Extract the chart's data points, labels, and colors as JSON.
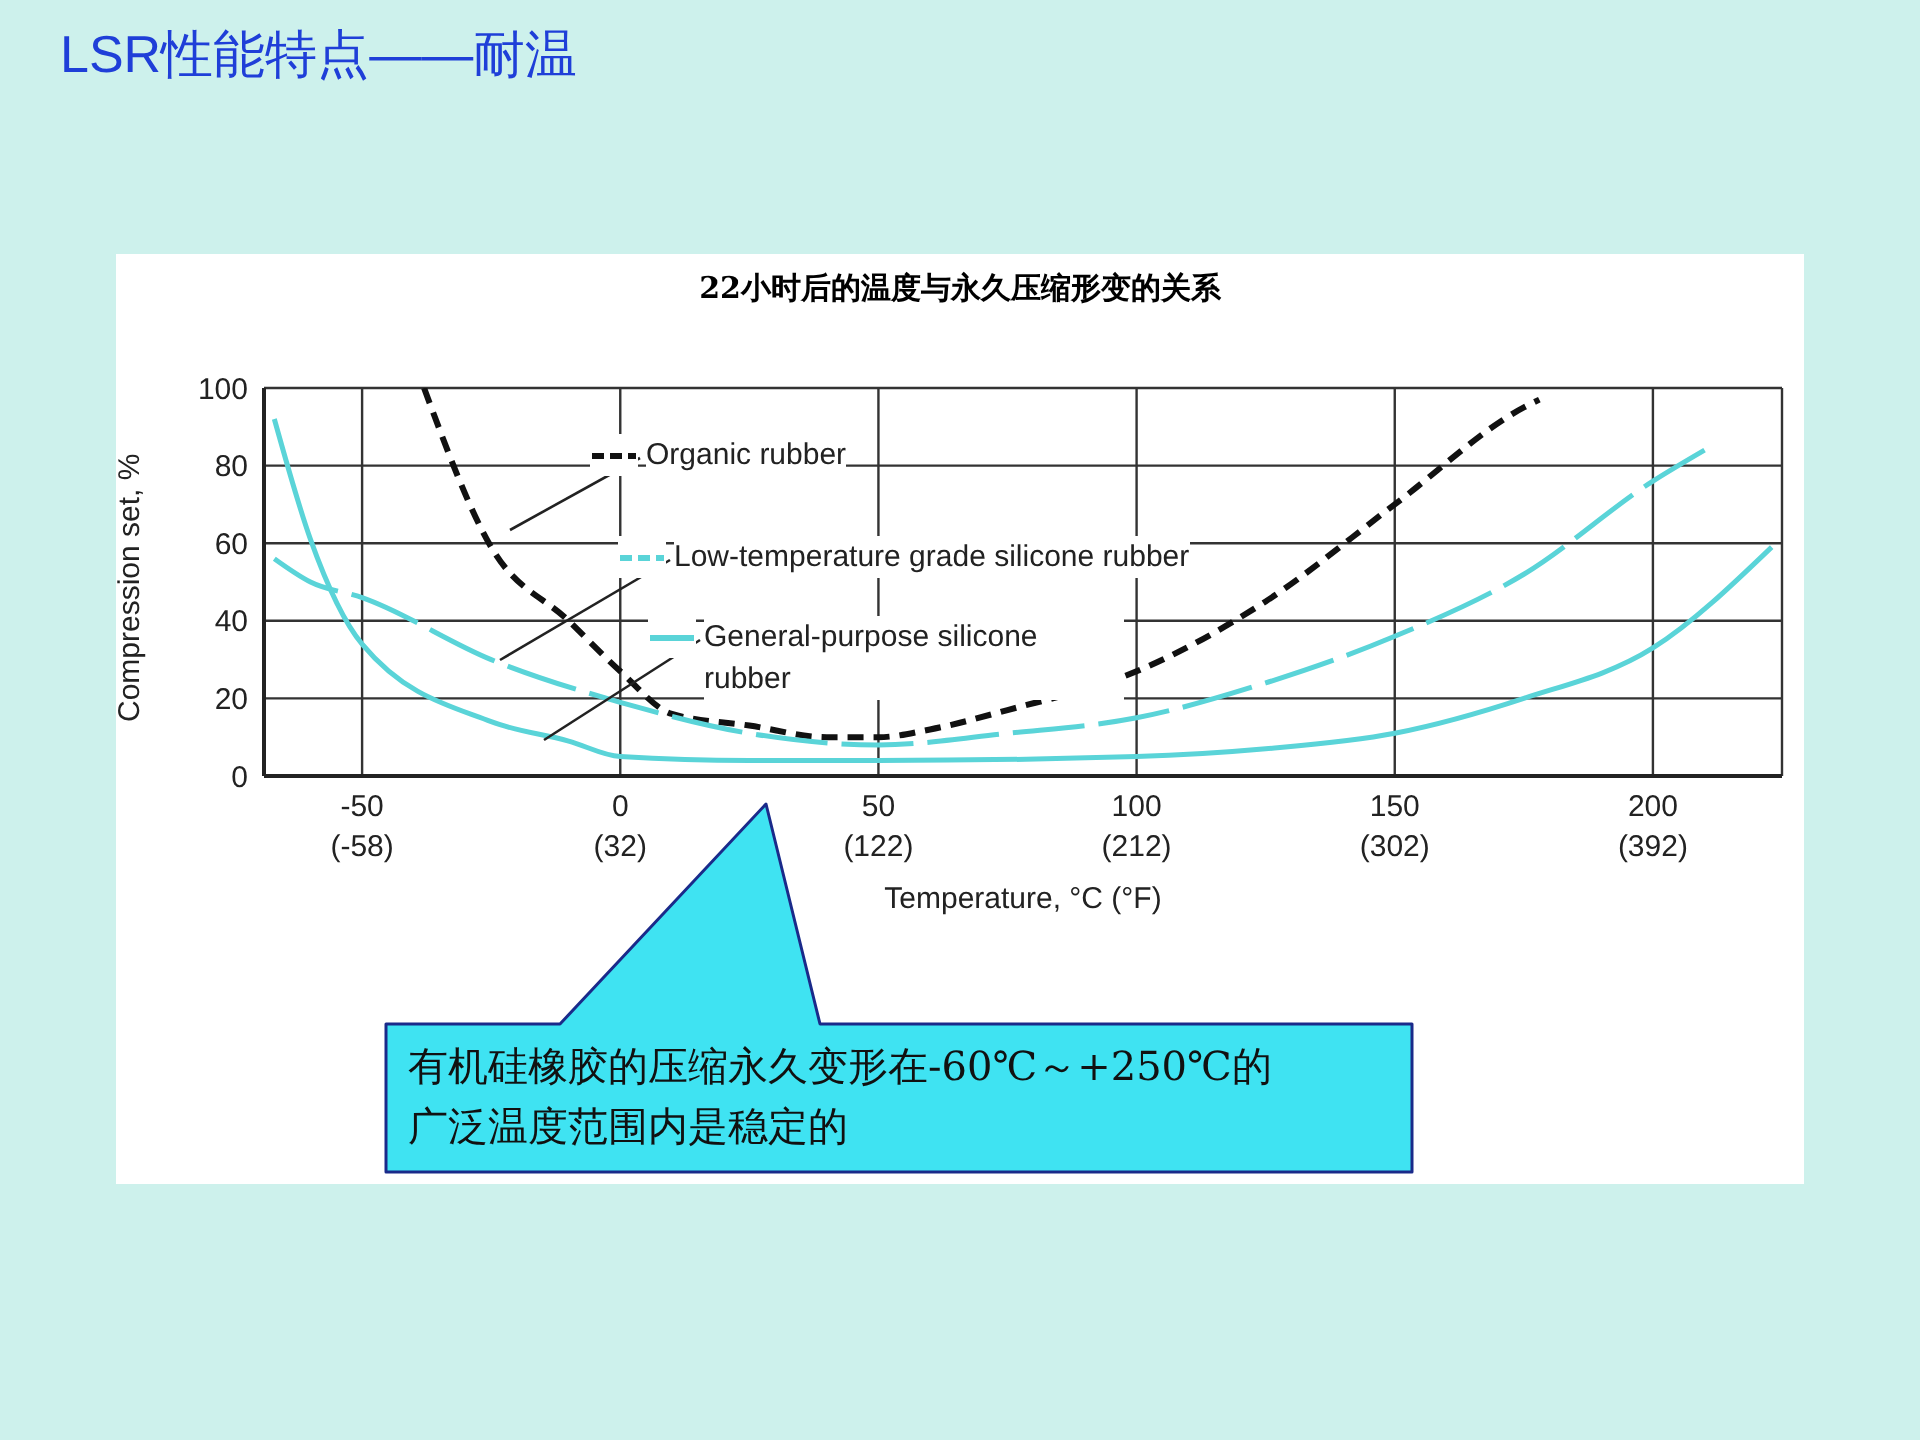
{
  "chart_data": {
    "type": "line",
    "title": "LSR性能特点——耐温",
    "subtitle": "22小时后的温度与永久压缩形变的关系",
    "xlabel": "Temperature, °C (°F)",
    "ylabel": "Compression set, %",
    "annotations": [
      "有机硅橡胶的压缩永久变形在-60℃～+250℃的广泛温度范围内是稳定的"
    ],
    "xlim": [
      -69,
      225
    ],
    "xticks": [
      -50,
      0,
      50,
      100,
      150,
      200
    ],
    "x2lim": [
      -92.2,
      437
    ],
    "x2ticks": [
      {
        "value": -58,
        "label": "(-58)"
      },
      {
        "value": 32,
        "label": "(32)"
      },
      {
        "value": 122,
        "label": "(122)"
      },
      {
        "value": 212,
        "label": "(212)"
      },
      {
        "value": 302,
        "label": "(302)"
      },
      {
        "value": 392,
        "label": "(392)"
      }
    ],
    "ylim": [
      0,
      100
    ],
    "yticks": [
      0,
      20,
      40,
      60,
      80,
      100
    ],
    "grid": true,
    "legend": "top",
    "marker": "none",
    "series": [
      {
        "name": "Organic rubber",
        "color": "#111111",
        "line_style": "dashed",
        "x": [
          -38,
          -25,
          -10,
          0,
          10,
          25,
          40,
          50,
          60,
          75,
          100,
          125,
          150,
          175,
          178
        ],
        "values": [
          100,
          59,
          40,
          27,
          16,
          13,
          10,
          10,
          12,
          17,
          27,
          45,
          70,
          95,
          97
        ]
      },
      {
        "name": "Low-temperature grade silicone rubber",
        "color": "#5ad4d8",
        "line_style": "dashed",
        "x": [
          -67,
          -60,
          -50,
          -25,
          0,
          25,
          50,
          75,
          100,
          125,
          150,
          175,
          200,
          210
        ],
        "values": [
          56,
          50,
          46,
          30,
          19,
          11,
          8,
          11,
          15,
          24,
          36,
          52,
          76,
          84
        ]
      },
      {
        "name": "General-purpose silicone rubber",
        "color": "#5ad4d8",
        "line_style": "solid",
        "x": [
          -67,
          -60,
          -50,
          -25,
          -10,
          0,
          25,
          50,
          100,
          125,
          150,
          175,
          200,
          223
        ],
        "values": [
          92,
          61,
          34,
          14,
          9,
          5,
          4,
          4,
          5,
          7,
          11,
          20,
          33,
          59
        ]
      }
    ]
  }
}
